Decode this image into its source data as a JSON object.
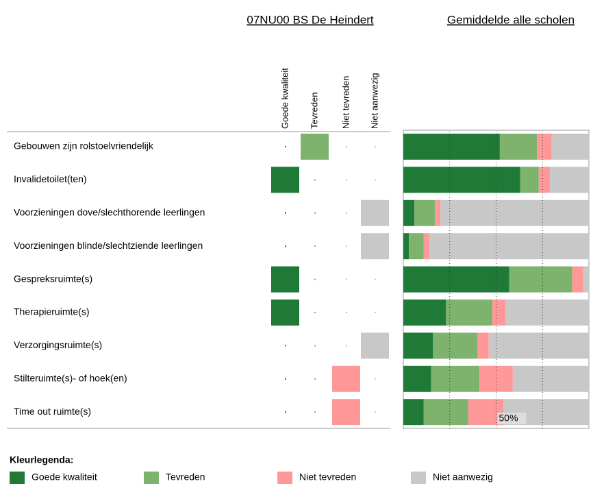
{
  "chart_data": {
    "type": "stacked-bar",
    "school_title": "07NU00 BS De Heindert",
    "average_title": "Gemiddelde alle scholen",
    "categories": [
      "Gebouwen zijn rolstoelvriendelijk",
      "Invalidetoilet(ten)",
      "Voorzieningen dove/slechthorende leerlingen",
      "Voorzieningen blinde/slechtziende leerlingen",
      "Gespreksruimte(s)",
      "Therapieruimte(s)",
      "Verzorgingsruimte(s)",
      "Stilteruimte(s)- of hoek(en)",
      "Time out ruimte(s)"
    ],
    "school_choice": [
      1,
      0,
      3,
      3,
      0,
      0,
      3,
      2,
      2
    ],
    "series": [
      {
        "name": "Goede kwaliteit",
        "color": "#1f7a38",
        "values": [
          52,
          63,
          6,
          3,
          57,
          23,
          16,
          15,
          11
        ]
      },
      {
        "name": "Tevreden",
        "color": "#7db36c",
        "values": [
          20,
          10,
          11,
          8,
          34,
          25,
          24,
          26,
          24
        ]
      },
      {
        "name": "Niet tevreden",
        "color": "#ff9999",
        "values": [
          8,
          6,
          3,
          3,
          6,
          7,
          6,
          18,
          19
        ]
      },
      {
        "name": "Niet aanwezig",
        "color": "#c8c8c8",
        "values": [
          20,
          21,
          80,
          86,
          3,
          45,
          54,
          41,
          46
        ]
      }
    ],
    "xlim": [
      0,
      100
    ],
    "xticks": [
      {
        "value": 25,
        "label": null
      },
      {
        "value": 50,
        "label": "50%"
      },
      {
        "value": 75,
        "label": null
      }
    ],
    "legend_title": "Kleurlegenda:"
  }
}
